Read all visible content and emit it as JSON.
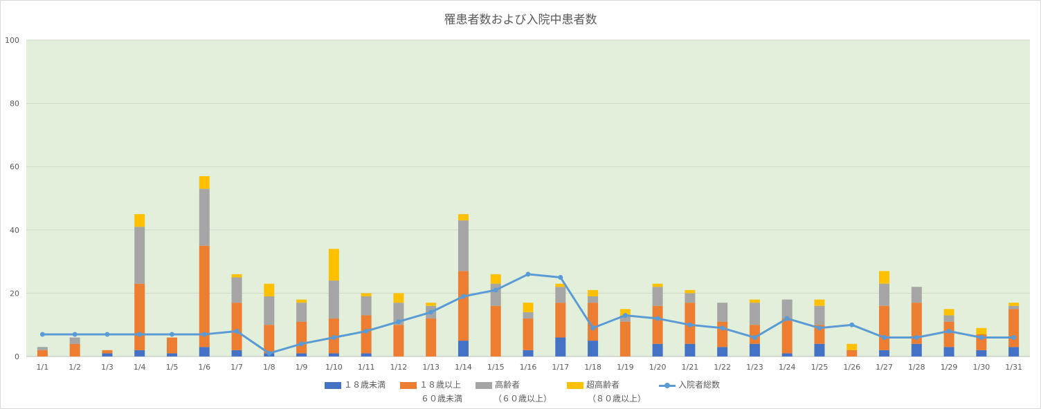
{
  "chart_data": {
    "type": "bar",
    "title": "罹患者数および入院中患者数",
    "xlabel": "",
    "ylabel": "",
    "ylim": [
      0,
      100
    ],
    "yticks": [
      "0",
      "20",
      "40",
      "60",
      "80",
      "100"
    ],
    "categories": [
      "1/1",
      "1/2",
      "1/3",
      "1/4",
      "1/5",
      "1/6",
      "1/7",
      "1/8",
      "1/9",
      "1/10",
      "1/11",
      "1/12",
      "1/13",
      "1/14",
      "1/15",
      "1/16",
      "1/17",
      "1/18",
      "1/19",
      "1/20",
      "1/21",
      "1/22",
      "1/23",
      "1/24",
      "1/25",
      "1/26",
      "1/27",
      "1/28",
      "1/29",
      "1/30",
      "1/31"
    ],
    "stacked": true,
    "series": [
      {
        "name": "１８歳未満",
        "color": "#4472c4",
        "values": [
          0,
          0,
          1,
          2,
          1,
          3,
          2,
          1,
          1,
          1,
          1,
          0,
          0,
          5,
          0,
          2,
          6,
          5,
          0,
          4,
          4,
          3,
          4,
          1,
          4,
          0,
          2,
          4,
          3,
          2,
          3
        ]
      },
      {
        "name": "１８歳以上 ６０歳未満",
        "color": "#ed7d31",
        "values": [
          2,
          4,
          1,
          21,
          5,
          32,
          15,
          9,
          10,
          11,
          12,
          10,
          12,
          22,
          16,
          10,
          11,
          12,
          11,
          12,
          13,
          8,
          6,
          11,
          6,
          2,
          14,
          13,
          8,
          5,
          12
        ]
      },
      {
        "name": "高齢者 （６０歳以上）",
        "color": "#a5a5a5",
        "values": [
          1,
          2,
          0,
          18,
          0,
          18,
          8,
          9,
          6,
          12,
          6,
          7,
          4,
          16,
          7,
          2,
          5,
          2,
          2,
          6,
          3,
          6,
          7,
          6,
          6,
          0,
          7,
          5,
          2,
          0,
          1
        ]
      },
      {
        "name": "超高齢者 （８０歳以上）",
        "color": "#ffc000",
        "values": [
          0,
          0,
          0,
          4,
          0,
          4,
          1,
          4,
          1,
          10,
          1,
          3,
          1,
          2,
          3,
          3,
          1,
          2,
          2,
          1,
          1,
          0,
          1,
          0,
          2,
          2,
          4,
          0,
          2,
          2,
          1
        ]
      }
    ],
    "line_series": {
      "name": "入院者総数",
      "color": "#5b9bd5",
      "values": [
        7,
        7,
        7,
        7,
        7,
        7,
        8,
        1,
        4,
        6,
        8,
        11,
        14,
        19,
        21,
        26,
        25,
        9,
        13,
        12,
        10,
        9,
        6,
        12,
        9,
        10,
        6,
        6,
        8,
        6,
        6
      ]
    },
    "grid": true,
    "plot_background": "#e2efda",
    "legend_position": "bottom"
  },
  "legend": {
    "s1": "１８歳未満",
    "s2_line1": "１８歳以上",
    "s2_line2": "６０歳未満",
    "s3_line1": "高齢者",
    "s3_line2": "（６０歳以上）",
    "s4_line1": "超高齢者",
    "s4_line2": "（８０歳以上）",
    "line": "入院者総数"
  }
}
